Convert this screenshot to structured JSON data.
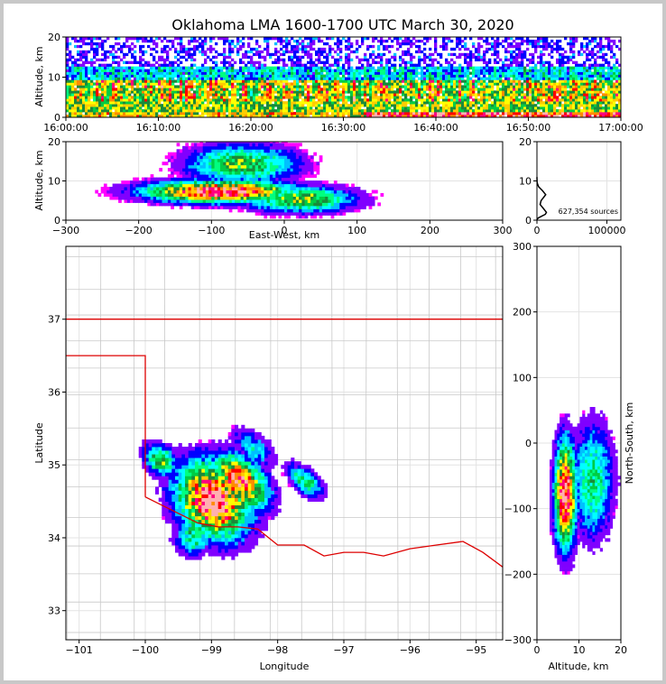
{
  "chart_data": {
    "title": "Oklahoma LMA 1600-1700 UTC March 30, 2020",
    "colors": {
      "density_scale": [
        "#ffffff",
        "#ff00ff",
        "#8000ff",
        "#0000ff",
        "#00bfff",
        "#00ffff",
        "#00ff80",
        "#00cc44",
        "#1a8a3a",
        "#ffff00",
        "#ffcc00",
        "#ff8c00",
        "#ff0000",
        "#ff0080",
        "#ffb0b0"
      ],
      "state_border": "#dd0000",
      "county_lines": "#c8c8c8"
    },
    "panels": [
      {
        "name": "altitude-time",
        "type": "heatmap",
        "xlabel": "",
        "ylabel": "Altitude, km",
        "xticks": [
          "16:00:00",
          "16:10:00",
          "16:20:00",
          "16:30:00",
          "16:40:00",
          "16:50:00",
          "17:00:00"
        ],
        "xlim": [
          0,
          60
        ],
        "ylim": [
          0,
          20
        ],
        "yticks": [
          0,
          10,
          20
        ]
      },
      {
        "name": "altitude-east-west",
        "type": "heatmap",
        "xlabel": "East-West, km",
        "ylabel": "Altitude, km",
        "xlim": [
          -300,
          300
        ],
        "xticks": [
          -300,
          -200,
          -100,
          0,
          100,
          200,
          300
        ],
        "ylim": [
          0,
          20
        ],
        "yticks": [
          0,
          10,
          20
        ]
      },
      {
        "name": "altitude-histogram",
        "type": "line",
        "xlim": [
          0,
          120000
        ],
        "xticks": [
          0,
          100000
        ],
        "ylim": [
          0,
          20
        ],
        "yticks": [
          0,
          10,
          20
        ],
        "annotation": "627,354 sources",
        "x": [
          0,
          400,
          2200,
          6500,
          12000,
          13500,
          9000,
          4500,
          6000,
          12500,
          8000,
          2500,
          900,
          300,
          100,
          0
        ],
        "y": [
          0.0,
          0.3,
          0.6,
          1.0,
          1.5,
          2.0,
          3.0,
          4.0,
          5.0,
          6.5,
          7.5,
          8.5,
          9.2,
          9.6,
          10.0,
          11.0
        ]
      },
      {
        "name": "plan-view",
        "type": "heatmap",
        "xlabel": "Longitude",
        "ylabel": "Latitude",
        "xlim": [
          -101.2,
          -94.6
        ],
        "xticks": [
          -101,
          -100,
          -99,
          -98,
          -97,
          -96,
          -95
        ],
        "ylim": [
          32.6,
          38.0
        ],
        "yticks": [
          33,
          34,
          35,
          36,
          37
        ]
      },
      {
        "name": "north-south-altitude",
        "type": "heatmap",
        "xlabel": "Altitude, km",
        "ylabel": "North-South, km",
        "xlim": [
          0,
          20
        ],
        "xticks": [
          0,
          10,
          20
        ],
        "ylim": [
          -300,
          300
        ],
        "yticks": [
          -300,
          -200,
          -100,
          0,
          100,
          200,
          300
        ]
      }
    ]
  }
}
